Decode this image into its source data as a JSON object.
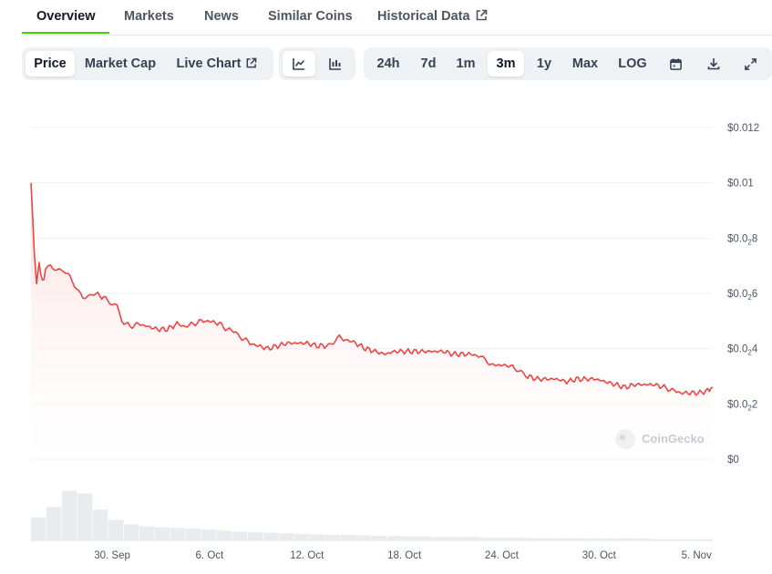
{
  "tabs": [
    {
      "label": "Overview"
    },
    {
      "label": "Markets"
    },
    {
      "label": "News"
    },
    {
      "label": "Similar Coins"
    },
    {
      "label": "Historical Data"
    }
  ],
  "metric_tabs": [
    {
      "label": "Price"
    },
    {
      "label": "Market Cap"
    },
    {
      "label": "Live Chart"
    }
  ],
  "ranges": [
    "24h",
    "7d",
    "1m",
    "3m",
    "1y",
    "Max",
    "LOG"
  ],
  "selected_range": "3m",
  "selected_metric": "Price",
  "watermark": "CoinGecko",
  "icons": {
    "external": "external-link-icon",
    "line_chart": "line-chart-icon",
    "candle_chart": "candlestick-chart-icon",
    "calendar": "calendar-icon",
    "download": "download-icon",
    "fullscreen": "expand-icon"
  },
  "colors": {
    "accent": "#4bcc00",
    "line": "#ef4444",
    "area_top": "#fde2e2",
    "volume": "#e9ecef"
  },
  "chart_data": {
    "type": "area",
    "y_tick_labels": [
      {
        "base": "$0.012",
        "sub": ""
      },
      {
        "base": "$0.01",
        "sub": ""
      },
      {
        "base": "$0.0",
        "sub": "2",
        "tail": "8"
      },
      {
        "base": "$0.0",
        "sub": "2",
        "tail": "6"
      },
      {
        "base": "$0.0",
        "sub": "2",
        "tail": "4"
      },
      {
        "base": "$0.0",
        "sub": "2",
        "tail": "2"
      },
      {
        "base": "$0",
        "sub": ""
      }
    ],
    "y_tick_values": [
      0.012,
      0.01,
      0.008,
      0.006,
      0.004,
      0.002,
      0
    ],
    "ylim": [
      0,
      0.012
    ],
    "x_tick_labels": [
      "30. Sep",
      "6. Oct",
      "12. Oct",
      "18. Oct",
      "24. Oct",
      "30. Oct",
      "5. Nov"
    ],
    "x_tick_days": [
      5,
      11,
      17,
      23,
      29,
      35,
      41
    ],
    "xlim_days": [
      0,
      42
    ],
    "grid": true,
    "series": [
      {
        "points": [
          [
            0.0,
            0.01
          ],
          [
            0.1,
            0.0088
          ],
          [
            0.2,
            0.0075
          ],
          [
            0.35,
            0.0063
          ],
          [
            0.5,
            0.0071
          ],
          [
            0.7,
            0.0064
          ],
          [
            0.9,
            0.0068
          ],
          [
            1.2,
            0.007
          ],
          [
            1.6,
            0.0068
          ],
          [
            2.0,
            0.0068
          ],
          [
            2.4,
            0.0066
          ],
          [
            2.8,
            0.0062
          ],
          [
            3.2,
            0.0059
          ],
          [
            3.6,
            0.0059
          ],
          [
            4.0,
            0.006
          ],
          [
            4.6,
            0.0058
          ],
          [
            5.0,
            0.0056
          ],
          [
            5.3,
            0.0055
          ],
          [
            5.6,
            0.005
          ],
          [
            6.1,
            0.0048
          ],
          [
            6.6,
            0.0049
          ],
          [
            7.2,
            0.0048
          ],
          [
            7.8,
            0.0047
          ],
          [
            8.4,
            0.0047
          ],
          [
            9.0,
            0.0049
          ],
          [
            9.5,
            0.0048
          ],
          [
            10.0,
            0.0049
          ],
          [
            10.5,
            0.005
          ],
          [
            11.0,
            0.005
          ],
          [
            11.6,
            0.0049
          ],
          [
            12.1,
            0.0047
          ],
          [
            12.6,
            0.0046
          ],
          [
            13.0,
            0.0044
          ],
          [
            13.5,
            0.0042
          ],
          [
            14.0,
            0.0041
          ],
          [
            14.6,
            0.004
          ],
          [
            15.2,
            0.0041
          ],
          [
            15.8,
            0.0042
          ],
          [
            16.4,
            0.0042
          ],
          [
            17.0,
            0.0042
          ],
          [
            17.6,
            0.0041
          ],
          [
            18.2,
            0.0041
          ],
          [
            18.6,
            0.0042
          ],
          [
            19.0,
            0.0044
          ],
          [
            19.5,
            0.0043
          ],
          [
            20.0,
            0.0042
          ],
          [
            20.6,
            0.004
          ],
          [
            21.2,
            0.0039
          ],
          [
            21.8,
            0.0038
          ],
          [
            22.4,
            0.0039
          ],
          [
            23.0,
            0.0039
          ],
          [
            23.6,
            0.0039
          ],
          [
            24.2,
            0.0039
          ],
          [
            24.8,
            0.0039
          ],
          [
            25.4,
            0.0039
          ],
          [
            26.0,
            0.0038
          ],
          [
            26.6,
            0.0038
          ],
          [
            27.2,
            0.0038
          ],
          [
            27.7,
            0.0037
          ],
          [
            28.1,
            0.0035
          ],
          [
            28.6,
            0.0034
          ],
          [
            29.3,
            0.0034
          ],
          [
            29.8,
            0.0033
          ],
          [
            30.2,
            0.0032
          ],
          [
            30.6,
            0.003
          ],
          [
            31.2,
            0.0029
          ],
          [
            31.8,
            0.0029
          ],
          [
            32.4,
            0.0029
          ],
          [
            33.0,
            0.0028
          ],
          [
            33.6,
            0.0029
          ],
          [
            34.2,
            0.0029
          ],
          [
            34.8,
            0.0029
          ],
          [
            35.4,
            0.0028
          ],
          [
            36.0,
            0.0027
          ],
          [
            36.6,
            0.0026
          ],
          [
            37.2,
            0.0027
          ],
          [
            37.8,
            0.0027
          ],
          [
            38.4,
            0.0027
          ],
          [
            39.0,
            0.0026
          ],
          [
            39.5,
            0.0025
          ],
          [
            40.0,
            0.0024
          ],
          [
            40.6,
            0.0024
          ],
          [
            41.2,
            0.0024
          ],
          [
            41.8,
            0.0025
          ],
          [
            42.0,
            0.0026
          ]
        ]
      }
    ],
    "volume": [
      0.45,
      0.65,
      0.95,
      0.9,
      0.6,
      0.4,
      0.32,
      0.28,
      0.26,
      0.25,
      0.24,
      0.22,
      0.2,
      0.18,
      0.17,
      0.16,
      0.15,
      0.14,
      0.13,
      0.12,
      0.12,
      0.11,
      0.1,
      0.1,
      0.09,
      0.09,
      0.08,
      0.08,
      0.08,
      0.07,
      0.07,
      0.07,
      0.06,
      0.06,
      0.06,
      0.05,
      0.05,
      0.05,
      0.05,
      0.05,
      0.04,
      0.04,
      0.04,
      0.04
    ]
  }
}
